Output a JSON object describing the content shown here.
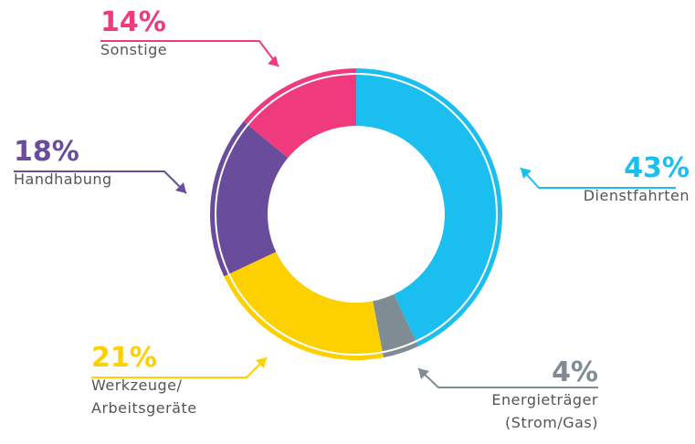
{
  "chart_data": {
    "type": "donut",
    "categories": [
      "Dienstfahrten",
      "Energieträger (Strom/Gas)",
      "Werkzeuge/ Arbeitsgeräte",
      "Handhabung",
      "Sonstige"
    ],
    "values": [
      43,
      4,
      21,
      18,
      14
    ],
    "value_labels": [
      "43%",
      "4%",
      "21%",
      "18%",
      "14%"
    ],
    "colors": [
      "#1bbfef",
      "#7f8c93",
      "#fdd000",
      "#6a4c9c",
      "#ef3a7e"
    ]
  }
}
